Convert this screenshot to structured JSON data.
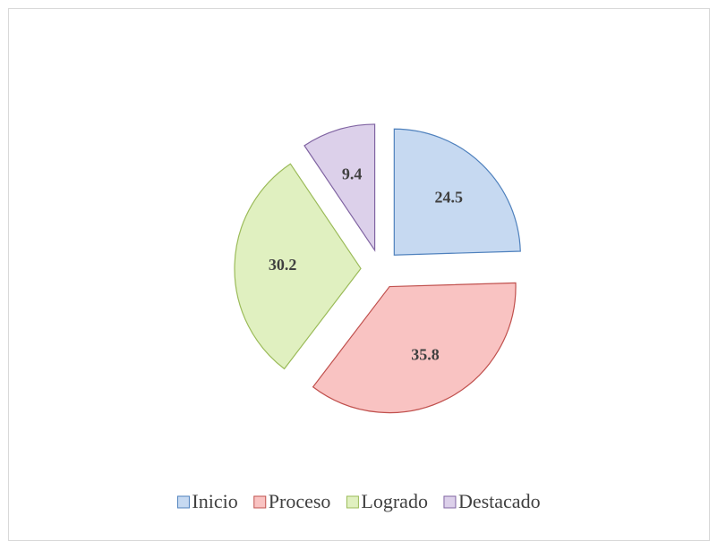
{
  "chart_data": {
    "type": "pie",
    "categories": [
      "Inicio",
      "Proceso",
      "Logrado",
      "Destacado"
    ],
    "values": [
      24.5,
      35.8,
      30.2,
      9.4
    ],
    "colors": [
      "#c6d9f1",
      "#f9c3c2",
      "#e0f0c0",
      "#dcd0ea"
    ],
    "edge_colors": [
      "#4f81bd",
      "#c0504d",
      "#9bbb59",
      "#8064a2"
    ],
    "legend": "bottom"
  }
}
